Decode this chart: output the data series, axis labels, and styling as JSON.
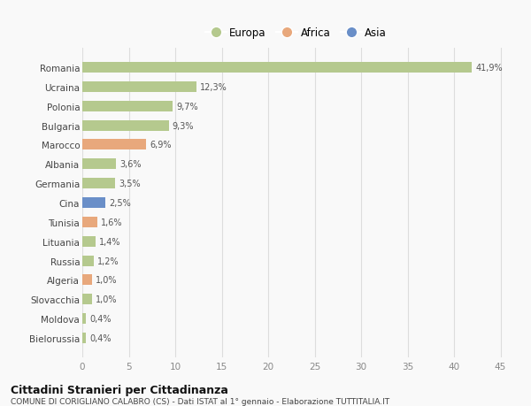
{
  "countries": [
    "Romania",
    "Ucraina",
    "Polonia",
    "Bulgaria",
    "Marocco",
    "Albania",
    "Germania",
    "Cina",
    "Tunisia",
    "Lituania",
    "Russia",
    "Algeria",
    "Slovacchia",
    "Moldova",
    "Bielorussia"
  ],
  "values": [
    41.9,
    12.3,
    9.7,
    9.3,
    6.9,
    3.6,
    3.5,
    2.5,
    1.6,
    1.4,
    1.2,
    1.0,
    1.0,
    0.4,
    0.4
  ],
  "labels": [
    "41,9%",
    "12,3%",
    "9,7%",
    "9,3%",
    "6,9%",
    "3,6%",
    "3,5%",
    "2,5%",
    "1,6%",
    "1,4%",
    "1,2%",
    "1,0%",
    "1,0%",
    "0,4%",
    "0,4%"
  ],
  "continent": [
    "Europa",
    "Europa",
    "Europa",
    "Europa",
    "Africa",
    "Europa",
    "Europa",
    "Asia",
    "Africa",
    "Europa",
    "Europa",
    "Africa",
    "Europa",
    "Europa",
    "Europa"
  ],
  "colors": {
    "Europa": "#b5c98e",
    "Africa": "#e8a87c",
    "Asia": "#6a8fc8"
  },
  "xlim": [
    0,
    46
  ],
  "xticks": [
    0,
    5,
    10,
    15,
    20,
    25,
    30,
    35,
    40,
    45
  ],
  "title": "Cittadini Stranieri per Cittadinanza",
  "subtitle": "COMUNE DI CORIGLIANO CALABRO (CS) - Dati ISTAT al 1° gennaio - Elaborazione TUTTITALIA.IT",
  "bg_color": "#f9f9f9",
  "grid_color": "#dddddd",
  "bar_height": 0.55
}
